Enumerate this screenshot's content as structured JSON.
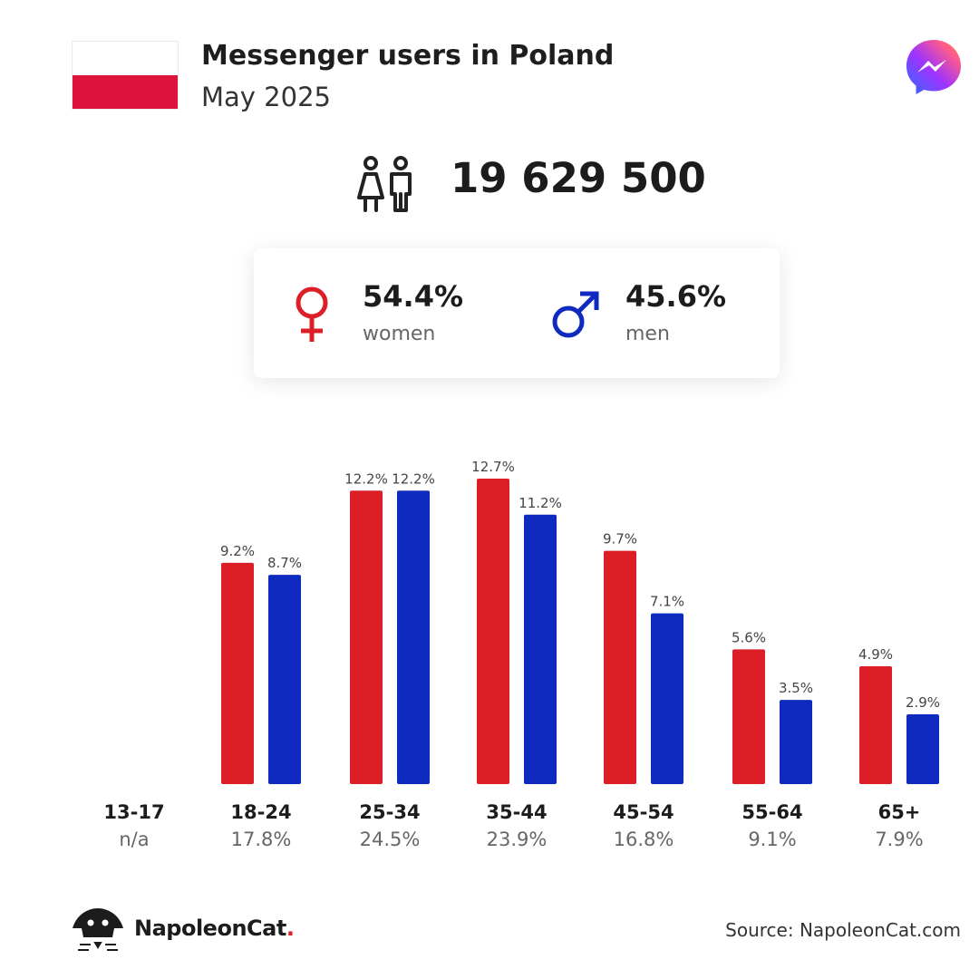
{
  "header": {
    "title": "Messenger users in Poland",
    "subtitle": "May 2025",
    "app_icon": "messenger-icon",
    "flag": "poland-flag"
  },
  "total": {
    "icon": "users-icon",
    "value": "19 629 500"
  },
  "gender": {
    "women": {
      "icon": "female-symbol-icon",
      "value": "54.4%",
      "label": "women",
      "color": "#dc1f26"
    },
    "men": {
      "icon": "male-symbol-icon",
      "value": "45.6%",
      "label": "men",
      "color": "#0f2bbf"
    }
  },
  "chart_data": {
    "type": "bar",
    "categories": [
      "13-17",
      "18-24",
      "25-34",
      "35-44",
      "45-54",
      "55-64",
      "65+"
    ],
    "category_shares": [
      "n/a",
      "17.8%",
      "24.5%",
      "23.9%",
      "16.8%",
      "9.1%",
      "7.9%"
    ],
    "series": [
      {
        "name": "women",
        "color": "#dc1f26",
        "values": [
          null,
          9.2,
          12.2,
          12.7,
          9.7,
          5.6,
          4.9
        ],
        "labels": [
          null,
          "9.2%",
          "12.2%",
          "12.7%",
          "9.7%",
          "5.6%",
          "4.9%"
        ]
      },
      {
        "name": "men",
        "color": "#0f2bbf",
        "values": [
          null,
          8.7,
          12.2,
          11.2,
          7.1,
          3.5,
          2.9
        ],
        "labels": [
          null,
          "8.7%",
          "12.2%",
          "11.2%",
          "7.1%",
          "3.5%",
          "2.9%"
        ]
      }
    ],
    "ylim": [
      0,
      12.7
    ],
    "grid": false
  },
  "footer": {
    "brand_name": "NapoleonCat",
    "brand_dot": ".",
    "brand_logo": "napoleoncat-logo-icon",
    "source": "Source: NapoleonCat.com"
  }
}
